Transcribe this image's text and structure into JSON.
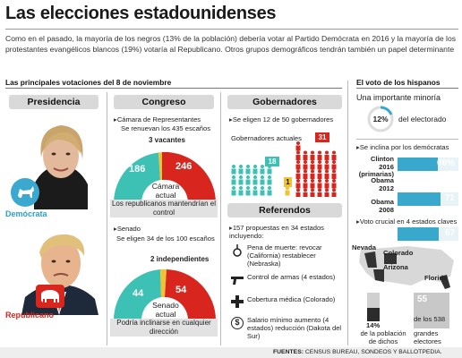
{
  "title": "Las elecciones estadounidenses",
  "intro": "Como en el pasado, la mayoría de los negros (13% de la población) debería votar al Partido Demócrata en 2016 y la mayoría de los protestantes evangélicos blancos (19%) votaría al Republicano. Otros grupos demográficos tendrán también un papel determinante",
  "left_header": "Las principales votaciones del 8 de noviembre",
  "right_header": "El voto de los hispanos",
  "presidencia": {
    "label": "Presidencia",
    "dem_label": "Demócrata",
    "rep_label": "Republicano",
    "dem_color": "#2a9fc9",
    "rep_color": "#d8261f"
  },
  "congreso": {
    "label": "Congreso",
    "camara_text1": "Cámara de Representantes",
    "camara_text2": "Se renuevan los 435 escaños",
    "vacantes": "3 vacantes",
    "dem_seats": "186",
    "rep_seats": "246",
    "camara_center1": "Cámara",
    "camara_center2": "actual",
    "camara_note": "Los republicanos mantendrían el control",
    "senado_text1": "Senado",
    "senado_text2": "Se eligen 34 de los 100 escaños",
    "independientes": "2 independientes",
    "sen_dem": "44",
    "sen_rep": "54",
    "senado_center1": "Senado",
    "senado_center2": "actual",
    "senado_note": "Podría inclinarse en cualquier dirección",
    "teal": "#3cc1b4",
    "red": "#d8261f"
  },
  "gobernadores": {
    "label": "Gobernadores",
    "text1": "Se eligen 12 de 50 gobernadores",
    "text2": "Gobernadores actuales",
    "dem": "18",
    "ind": "1",
    "rep": "31"
  },
  "referendos": {
    "label": "Referendos",
    "intro": "157 propuestas en 34 estados incluyendo:",
    "items": [
      {
        "icon": "noose-icon",
        "text": "Pena de muerte: revocar (California) restablecer (Nebraska)"
      },
      {
        "icon": "gun-icon",
        "text": "Control de armas (4 estados)"
      },
      {
        "icon": "medical-cross-icon",
        "text": "Cobertura médica (Colorado)"
      },
      {
        "icon": "dollar-icon",
        "text": "Salario mínimo aumento (4 estados) reducción (Dakota del Sur)"
      }
    ]
  },
  "hispanos": {
    "minoria_label": "Una importante minoría",
    "pct": "12%",
    "pct_value": 12,
    "pct_text": "del electorado",
    "democratas_label": "Se inclina por los demócratas",
    "bars": [
      {
        "name": "Clinton 2016 (primarias)",
        "value": 66,
        "label": "66%"
      },
      {
        "name": "Obama 2012",
        "value": 71,
        "label": "71"
      },
      {
        "name": "Obama 2008",
        "value": 67,
        "label": "67"
      }
    ],
    "clave_label": "Voto crucial en 4 estados claves",
    "states": [
      "Nevada",
      "Colorado",
      "Arizona",
      "Florida"
    ],
    "pct_poblacion": "14%",
    "pobl_text": "de la población de dichos estados",
    "electores_num": "55",
    "electores_of": "de los 538",
    "electores_text": "grandes electores"
  },
  "fuentes_label": "FUENTES:",
  "fuentes_text": "CENSUS BUREAU, SONDEOS Y BALLOTPEDIA."
}
